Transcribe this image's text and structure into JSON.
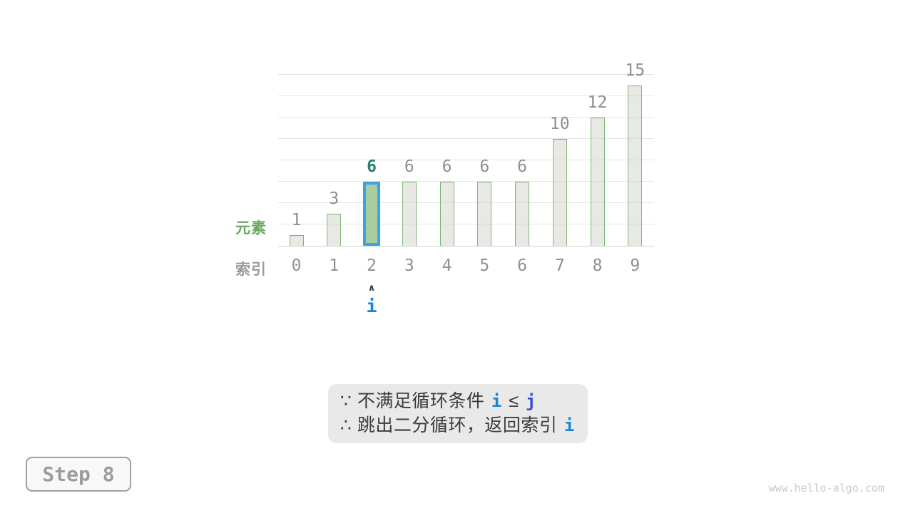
{
  "chart_data": {
    "type": "bar",
    "title": "",
    "categories": [
      "0",
      "1",
      "2",
      "3",
      "4",
      "5",
      "6",
      "7",
      "8",
      "9"
    ],
    "values": [
      1,
      3,
      6,
      6,
      6,
      6,
      6,
      10,
      12,
      15
    ],
    "highlight_index": 2,
    "xlabel": "索引",
    "ylabel": "元素",
    "ylim": [
      0,
      16
    ],
    "gridline_step": 2,
    "grid": true,
    "legend": "none"
  },
  "pointer": {
    "index": 2,
    "caret_symbol": "∧",
    "label": "i"
  },
  "note": {
    "lines": [
      {
        "segments": [
          {
            "text": "∵ 不满足循环条件 ",
            "style": "plain"
          },
          {
            "text": "i",
            "style": "var-i"
          },
          {
            "text": " ≤ ",
            "style": "plain"
          },
          {
            "text": "j",
            "style": "var-j"
          }
        ]
      },
      {
        "segments": [
          {
            "text": "∴ 跳出二分循环，返回索引 ",
            "style": "plain"
          },
          {
            "text": "i",
            "style": "var-i"
          }
        ]
      }
    ]
  },
  "step": {
    "label": "Step 8"
  },
  "watermark": {
    "text": "www.hello-algo.com"
  },
  "palette": {
    "bar_fill": "#e6e6e3",
    "bar_stroke": "#7cb874",
    "highlight_fill": "#a9cfa0",
    "highlight_border": "#3aa2e6",
    "highlight_value_color": "#27806c",
    "value_label_color": "#8f8f8f",
    "index_label_color": "#909090",
    "ylabel_color": "#68a95c",
    "xlabel_color": "#9a9a9a",
    "pointer_color": "#1787d2",
    "var_j_color": "#3b4dd8",
    "note_bg": "#e9e9e9",
    "note_text": "#3c3c3c",
    "grid_color": "#e4e4e4",
    "axis_color": "#d2d2d0",
    "step_text_color": "#9c9c9c",
    "step_border_color": "#9ba1a5",
    "watermark_color": "#c9c9c9"
  }
}
